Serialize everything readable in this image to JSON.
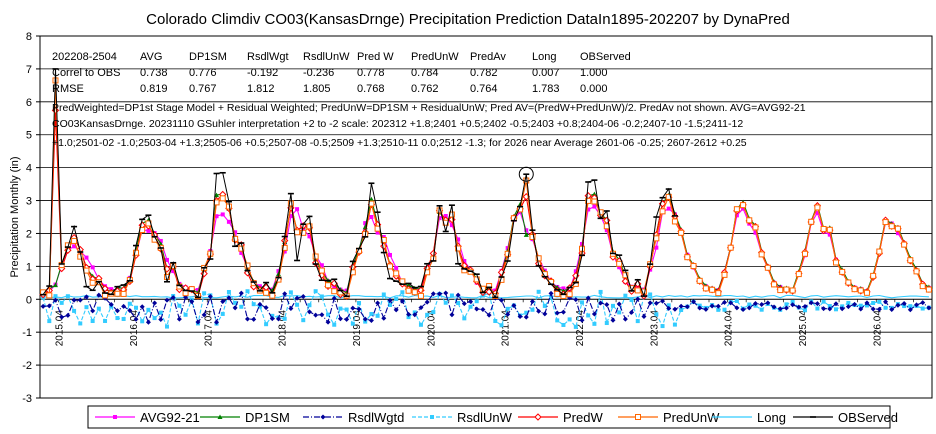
{
  "chart_data": {
    "type": "line",
    "title": "Colorado Climdiv CO03(KansasDrnge) Precipitation Prediction DataIn1895-202207 by DynaPred",
    "ylabel": "Precipitation Monthly (in)",
    "xlabel": "",
    "ylim": [
      -3,
      8
    ],
    "yticks": [
      -3,
      -2,
      -1,
      0,
      1,
      2,
      3,
      4,
      5,
      6,
      7,
      8
    ],
    "xlim": [
      2015.0,
      2027.0
    ],
    "xticks": [
      {
        "label": "2015.04",
        "x": 2015.25
      },
      {
        "label": "2016.04",
        "x": 2016.25
      },
      {
        "label": "2017.04",
        "x": 2017.25
      },
      {
        "label": "2018.04",
        "x": 2018.25
      },
      {
        "label": "2019.04",
        "x": 2019.25
      },
      {
        "label": "2020.04",
        "x": 2020.25
      },
      {
        "label": "2021.04",
        "x": 2021.25
      },
      {
        "label": "2022.04",
        "x": 2022.25
      },
      {
        "label": "2023.04",
        "x": 2023.25
      },
      {
        "label": "2024.04",
        "x": 2024.25
      },
      {
        "label": "2025.04",
        "x": 2025.25
      },
      {
        "label": "2026.04",
        "x": 2026.25
      }
    ],
    "stats_table": {
      "header": [
        "202208-2504",
        "AVG",
        "DP1SM",
        "RsdlWgt",
        "RsdlUnW",
        "Pred W",
        "PredUnW",
        "PredAv",
        "Long",
        "OBServed"
      ],
      "rows": [
        [
          "Correl to OBS",
          "0.738",
          "0.776",
          "-0.192",
          "-0.236",
          "0.778",
          "0.784",
          "0.782",
          "0.007",
          "1.000"
        ],
        [
          "RMSE",
          "0.819",
          "0.767",
          "1.812",
          "1.805",
          "0.768",
          "0.762",
          "0.764",
          "1.783",
          "0.000"
        ]
      ]
    },
    "annotations": [
      "PredWeighted=DP1st Stage Model + Residual Weighted; PredUnW=DP1SM + ResidualUnW; Pred AV=(PredW+PredUnW)/2. PredAv not shown.   AVG=AVG92-21",
      "CO03KansasDrnge. 20231110 GSuhler interpretation +2 to -2 scale: 202312 +1.8;2401 +0.5;2402 -0.5;2403 +0.8;2404-06 -0.2;2407-10 -1.5;2411-12",
      "+1.0;2501-02 -1.0;2503-04 +1.3;2505-06 +0.5;2507-08 -0.5;2509 +1.3;2510-11 0.0;2512 -1.3; for 2026 near Average 2601-06 -0.25; 2607-2612 +0.25"
    ],
    "climatology_monthly": [
      0.35,
      0.3,
      0.9,
      1.6,
      2.7,
      2.85,
      2.4,
      2.1,
      1.4,
      1.0,
      0.55,
      0.4
    ],
    "series_params": {
      "start_year": 2015,
      "months": 144,
      "data_end_index": 103
    },
    "series": [
      {
        "name": "AVG92-21",
        "color": "#ff00ff",
        "marker": "square-filled",
        "dash": "solid"
      },
      {
        "name": "DP1SM",
        "color": "#008000",
        "marker": "triangle",
        "dash": "solid"
      },
      {
        "name": "RsdlWgtd",
        "color": "#000099",
        "marker": "diamond-filled",
        "dash": "dashdot"
      },
      {
        "name": "RsdlUnW",
        "color": "#33ccff",
        "marker": "square-filled",
        "dash": "dash"
      },
      {
        "name": "PredW",
        "color": "#ff0000",
        "marker": "diamond-open",
        "dash": "solid"
      },
      {
        "name": "PredUnW",
        "color": "#ff6600",
        "marker": "square-open",
        "dash": "solid"
      },
      {
        "name": "Long",
        "color": "#33ccff",
        "marker": "none",
        "dash": "solid"
      },
      {
        "name": "OBServed",
        "color": "#000000",
        "marker": "hbar",
        "dash": "solid"
      }
    ],
    "observed_highlights": [
      {
        "month_index": 2,
        "value": 7.0
      },
      {
        "month_index": 78,
        "value": 3.8
      }
    ]
  }
}
